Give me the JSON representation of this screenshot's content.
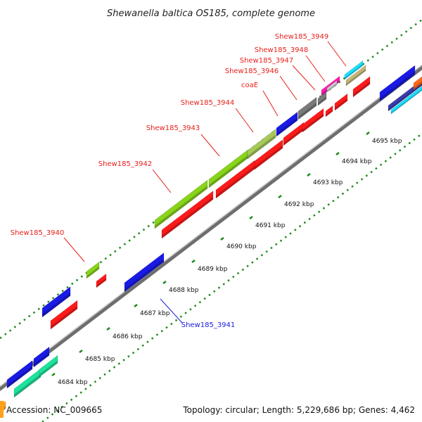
{
  "title": "Shewanella baltica OS185, complete genome",
  "footer": {
    "accession": "Accession: NC_009665",
    "topology": "Topology: circular; Length: 5,229,686 bp; Genes: 4,462"
  },
  "colors": {
    "label_red": "#e8201c",
    "label_blue": "#1a1add",
    "backbone": "#8c8c8c",
    "dots": "#1e8a1e",
    "ticks": "#1e8a1e",
    "cds_red": "#ff1a1a",
    "cds_blue": "#1a1ae6",
    "cds_green": "#88d41a",
    "cds_teal": "#1de39c",
    "cds_cyan": "#1ae0ff",
    "cds_gray": "#7a7a7a",
    "cds_magenta": "#ff1ab0",
    "cds_tan": "#c4b478",
    "cds_lightgray": "#c8c8c8",
    "cds_navy": "#3a3ab0",
    "cds_orange": "#ffa01a"
  },
  "scale_labels": [
    "4684 kbp",
    "4685 kbp",
    "4686 kbp",
    "4687 kbp",
    "4688 kbp",
    "4689 kbp",
    "4690 kbp",
    "4691 kbp",
    "4692 kbp",
    "4693 kbp",
    "4694 kbp",
    "4695 kbp"
  ],
  "gene_labels": [
    "Shew185_3949",
    "Shew185_3948",
    "Shew185_3947",
    "Shew185_3946",
    "coaE",
    "Shew185_3944",
    "Shew185_3943",
    "Shew185_3942",
    "Shew185_3940",
    "Shew185_3941"
  ],
  "gene_label_strands": [
    "red",
    "red",
    "red",
    "red",
    "red",
    "red",
    "red",
    "red",
    "red",
    "blue"
  ]
}
